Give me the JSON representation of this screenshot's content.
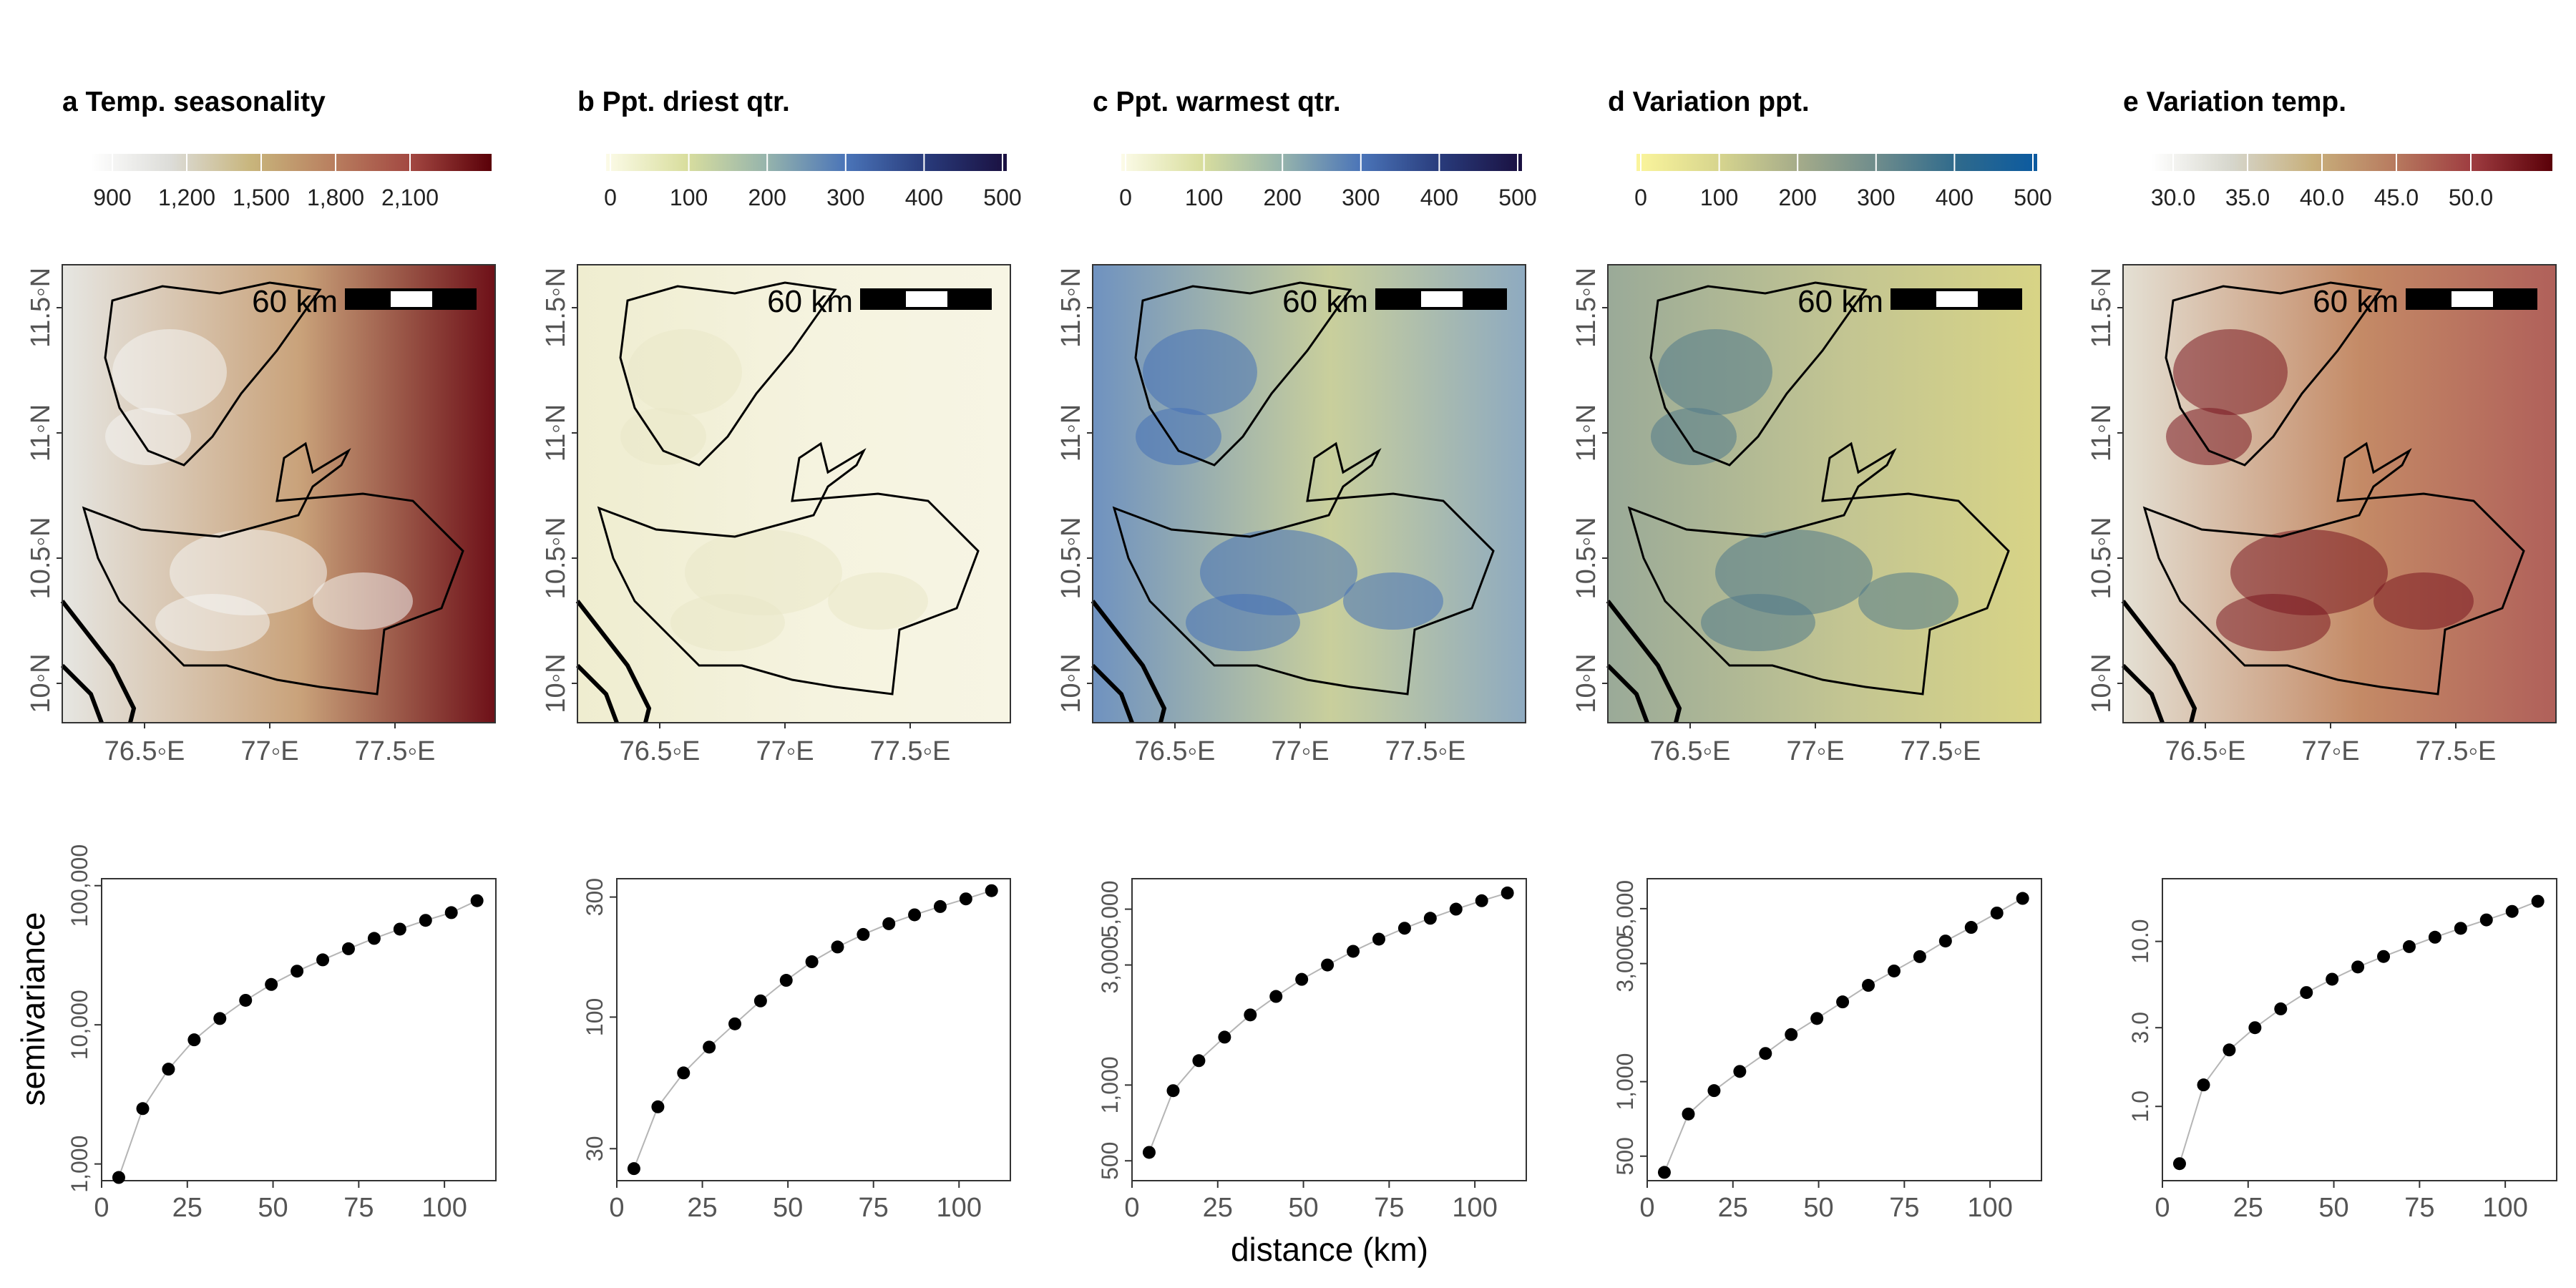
{
  "figure": {
    "ylabel": "semivariance",
    "xlabel": "distance (km)",
    "scale_bar_label": "60 km",
    "map_lat_ticks": [
      "11.5◦N",
      "11◦N",
      "10.5◦N",
      "10◦N"
    ],
    "map_lon_ticks": [
      "76.5◦E",
      "77◦E",
      "77.5◦E"
    ]
  },
  "panels": [
    {
      "title": "a Temp. seasonality",
      "colorbar": {
        "stops": [
          "#ffffff",
          "#dcdcd8",
          "#c8b57c",
          "#b98060",
          "#a24741",
          "#5a0008"
        ],
        "ticks": [
          "900",
          "1,200",
          "1,500",
          "1,800",
          "2,100"
        ]
      },
      "map": {
        "base": "#c9a27a",
        "left": "#e6e6e2",
        "right": "#6e1018",
        "highlight": "#f4f4f2"
      }
    },
    {
      "title": "b Ppt. driest qtr.",
      "colorbar": {
        "stops": [
          "#fcfbe8",
          "#d9de9e",
          "#96b4ac",
          "#4a74b8",
          "#283a7a",
          "#1a1040"
        ],
        "ticks": [
          "0",
          "100",
          "200",
          "300",
          "400",
          "500"
        ]
      },
      "map": {
        "base": "#f5f3df",
        "left": "#efedd0",
        "right": "#f7f5e4",
        "highlight": "#eae8c8"
      }
    },
    {
      "title": "c Ppt. warmest qtr.",
      "colorbar": {
        "stops": [
          "#fcfbe8",
          "#d9de9e",
          "#96b4ac",
          "#4a74b8",
          "#283a7a",
          "#1a1040"
        ],
        "ticks": [
          "0",
          "100",
          "200",
          "300",
          "400",
          "500"
        ]
      },
      "map": {
        "base": "#c9cf9c",
        "left": "#6f92c0",
        "right": "#8eaac0",
        "highlight": "#4671b6"
      }
    },
    {
      "title": "d Variation ppt.",
      "colorbar": {
        "stops": [
          "#fbf59c",
          "#d8d68e",
          "#a6ac8a",
          "#6e8c8c",
          "#2f6a8c",
          "#0b5aa0"
        ],
        "ticks": [
          "0",
          "100",
          "200",
          "300",
          "400",
          "500"
        ]
      },
      "map": {
        "base": "#c3c592",
        "left": "#9aaa98",
        "right": "#d8d486",
        "highlight": "#527a8a"
      }
    },
    {
      "title": "e Variation temp.",
      "colorbar": {
        "stops": [
          "#ffffff",
          "#d6d6cc",
          "#c8b07c",
          "#b87c60",
          "#9e3c40",
          "#5a0008"
        ],
        "ticks": [
          "30.0",
          "35.0",
          "40.0",
          "45.0",
          "50.0"
        ]
      },
      "map": {
        "base": "#c48a66",
        "left": "#e4e0d4",
        "right": "#b0605a",
        "highlight": "#7a1820"
      }
    }
  ],
  "chart_data": [
    {
      "type": "scatter",
      "panel": "a",
      "scale": "log10-y",
      "xlabel": "distance (km)",
      "ylabel": "semivariance",
      "xlim": [
        0,
        115
      ],
      "ylim_log10": [
        2.88,
        5.05
      ],
      "x_ticks": [
        0,
        25,
        50,
        75,
        100
      ],
      "y_ticks": [
        {
          "value": 1000,
          "label": "1,000"
        },
        {
          "value": 10000,
          "label": "10,000"
        },
        {
          "value": 100000,
          "label": "100,000"
        }
      ],
      "x": [
        5,
        12,
        19.5,
        27,
        34.5,
        42,
        49.5,
        57,
        64.5,
        72,
        79.5,
        87,
        94.5,
        102,
        109.5
      ],
      "y": [
        800,
        2500,
        4800,
        7800,
        11100,
        15000,
        19500,
        24300,
        29300,
        35200,
        41800,
        48700,
        56300,
        64000,
        78000
      ]
    },
    {
      "type": "scatter",
      "panel": "b",
      "scale": "log10-y",
      "xlim": [
        0,
        115
      ],
      "ylim_log10": [
        1.35,
        2.55
      ],
      "x_ticks": [
        0,
        25,
        50,
        75,
        100
      ],
      "y_ticks": [
        {
          "value": 30,
          "label": "30"
        },
        {
          "value": 100,
          "label": "100"
        },
        {
          "value": 300,
          "label": "300"
        }
      ],
      "x": [
        5,
        12,
        19.5,
        27,
        34.5,
        42,
        49.5,
        57,
        64.5,
        72,
        79.5,
        87,
        94.5,
        102,
        109.5
      ],
      "y": [
        25,
        44,
        60,
        76,
        94,
        116,
        140,
        166,
        190,
        213,
        235,
        255,
        275,
        295,
        318
      ]
    },
    {
      "type": "scatter",
      "panel": "c",
      "scale": "log10-y",
      "xlim": [
        0,
        115
      ],
      "ylim_log10": [
        2.62,
        3.82
      ],
      "x_ticks": [
        0,
        25,
        50,
        75,
        100
      ],
      "y_ticks": [
        {
          "value": 500,
          "label": "500"
        },
        {
          "value": 1000,
          "label": "1,000"
        },
        {
          "value": 3000,
          "label": "3,000"
        },
        {
          "value": 5000,
          "label": "5,000"
        }
      ],
      "x": [
        5,
        12,
        19.5,
        27,
        34.5,
        42,
        49.5,
        57,
        64.5,
        72,
        79.5,
        87,
        94.5,
        102,
        109.5
      ],
      "y": [
        540,
        950,
        1250,
        1550,
        1900,
        2250,
        2630,
        3000,
        3400,
        3800,
        4200,
        4600,
        5000,
        5400,
        5800
      ]
    },
    {
      "type": "scatter",
      "panel": "d",
      "scale": "log10-y",
      "xlim": [
        0,
        115
      ],
      "ylim_log10": [
        2.6,
        3.82
      ],
      "x_ticks": [
        0,
        25,
        50,
        75,
        100
      ],
      "y_ticks": [
        {
          "value": 500,
          "label": "500"
        },
        {
          "value": 1000,
          "label": "1,000"
        },
        {
          "value": 3000,
          "label": "3,000"
        },
        {
          "value": 5000,
          "label": "5,000"
        }
      ],
      "x": [
        5,
        12,
        19.5,
        27,
        34.5,
        42,
        49.5,
        57,
        64.5,
        72,
        79.5,
        87,
        94.5,
        102,
        109.5
      ],
      "y": [
        430,
        740,
        920,
        1100,
        1300,
        1550,
        1800,
        2100,
        2450,
        2800,
        3200,
        3700,
        4200,
        4800,
        5500
      ]
    },
    {
      "type": "scatter",
      "panel": "e",
      "scale": "log10-y",
      "xlim": [
        0,
        115
      ],
      "ylim_log10": [
        -0.45,
        1.38
      ],
      "x_ticks": [
        0,
        25,
        50,
        75,
        100
      ],
      "y_ticks": [
        {
          "value": 1.0,
          "label": "1.0"
        },
        {
          "value": 3.0,
          "label": "3.0"
        },
        {
          "value": 10.0,
          "label": "10.0"
        }
      ],
      "x": [
        5,
        12,
        19.5,
        27,
        34.5,
        42,
        49.5,
        57,
        64.5,
        72,
        79.5,
        87,
        94.5,
        102,
        109.5
      ],
      "y": [
        0.45,
        1.35,
        2.2,
        3.0,
        3.9,
        4.9,
        5.9,
        7.0,
        8.1,
        9.3,
        10.6,
        12.0,
        13.5,
        15.2,
        17.5
      ]
    }
  ]
}
